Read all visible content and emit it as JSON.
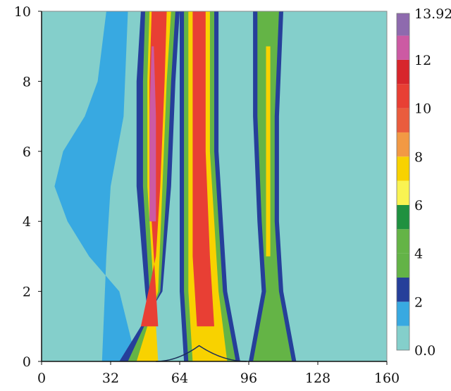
{
  "chart_data": {
    "type": "heatmap",
    "title": "",
    "xlabel": "",
    "ylabel": "",
    "xlim": [
      0,
      160
    ],
    "ylim": [
      0,
      10
    ],
    "x_ticks": [
      "0",
      "32",
      "64",
      "96",
      "128",
      "160"
    ],
    "y_ticks": [
      "0",
      "2",
      "4",
      "6",
      "8",
      "10"
    ],
    "colorbar": {
      "min": 0.0,
      "max": 13.92,
      "tick_labels": [
        "0.0",
        "2",
        "4",
        "6",
        "8",
        "10",
        "12",
        "13.92"
      ],
      "levels": [
        {
          "from": 0,
          "to": 1,
          "color": "#84cfcb"
        },
        {
          "from": 1,
          "to": 2,
          "color": "#38a9e1"
        },
        {
          "from": 2,
          "to": 3,
          "color": "#263f9a"
        },
        {
          "from": 3,
          "to": 4,
          "color": "#63b347"
        },
        {
          "from": 4,
          "to": 5,
          "color": "#64b446"
        },
        {
          "from": 5,
          "to": 6,
          "color": "#1f9140"
        },
        {
          "from": 6,
          "to": 7,
          "color": "#f9f352"
        },
        {
          "from": 7,
          "to": 8,
          "color": "#f8d200"
        },
        {
          "from": 8,
          "to": 9,
          "color": "#f29944"
        },
        {
          "from": 9,
          "to": 10,
          "color": "#ea5c3d"
        },
        {
          "from": 10,
          "to": 11,
          "color": "#e83f34"
        },
        {
          "from": 11,
          "to": 12,
          "color": "#d7262c"
        },
        {
          "from": 12,
          "to": 13,
          "color": "#cc5aa3"
        },
        {
          "from": 13,
          "to": 13.92,
          "color": "#8e6aae"
        }
      ]
    },
    "bottom_bump": {
      "x_start": 53,
      "x_peak": 73,
      "x_end": 95,
      "peak_y": 0.45
    },
    "bands": [
      {
        "name": "left-region",
        "color": "#38a9e1",
        "points": [
          [
            28,
            0
          ],
          [
            44,
            0
          ],
          [
            36,
            2
          ],
          [
            22,
            3
          ],
          [
            12,
            4
          ],
          [
            6,
            5
          ],
          [
            10,
            6
          ],
          [
            20,
            7
          ],
          [
            26,
            8
          ],
          [
            30,
            10
          ],
          [
            40,
            10
          ],
          [
            38,
            7
          ],
          [
            32,
            5
          ],
          [
            30,
            3
          ]
        ]
      },
      {
        "name": "band-1",
        "color": "#263f9a",
        "points": [
          [
            36,
            0
          ],
          [
            52,
            0
          ],
          [
            48,
            2
          ],
          [
            44,
            5
          ],
          [
            44,
            8
          ],
          [
            46,
            10
          ],
          [
            64,
            10
          ],
          [
            62,
            8
          ],
          [
            60,
            5
          ],
          [
            56,
            2
          ]
        ]
      },
      {
        "name": "band-1",
        "color": "#64b446",
        "points": [
          [
            40,
            0
          ],
          [
            53,
            0
          ],
          [
            50,
            2
          ],
          [
            47,
            5
          ],
          [
            47,
            8
          ],
          [
            48,
            10
          ],
          [
            62,
            10
          ],
          [
            60,
            8
          ],
          [
            58,
            5
          ],
          [
            55,
            2
          ]
        ]
      },
      {
        "name": "band-1",
        "color": "#f8d200",
        "points": [
          [
            44,
            0
          ],
          [
            54,
            0
          ],
          [
            52,
            2
          ],
          [
            49,
            5
          ],
          [
            49,
            8
          ],
          [
            50,
            10
          ],
          [
            60,
            10
          ],
          [
            58,
            8
          ],
          [
            56,
            5
          ],
          [
            54,
            2
          ]
        ]
      },
      {
        "name": "band-1",
        "color": "#e83f34",
        "points": [
          [
            46,
            1
          ],
          [
            54,
            1
          ],
          [
            52,
            3
          ],
          [
            50,
            5
          ],
          [
            50,
            8
          ],
          [
            51,
            10
          ],
          [
            58,
            10
          ],
          [
            57,
            8
          ],
          [
            55,
            5
          ],
          [
            53,
            3
          ]
        ]
      },
      {
        "name": "band-1",
        "color": "#cc5aa3",
        "points": [
          [
            50,
            4
          ],
          [
            53,
            4
          ],
          [
            53,
            7
          ],
          [
            52,
            9
          ],
          [
            51,
            9
          ],
          [
            50,
            7
          ]
        ]
      },
      {
        "name": "band-2",
        "color": "#263f9a",
        "points": [
          [
            66,
            0
          ],
          [
            92,
            0
          ],
          [
            86,
            2
          ],
          [
            82,
            6
          ],
          [
            82,
            10
          ],
          [
            64,
            10
          ],
          [
            64,
            6
          ],
          [
            64,
            2
          ]
        ]
      },
      {
        "name": "band-2",
        "color": "#64b446",
        "points": [
          [
            68,
            0
          ],
          [
            90,
            0
          ],
          [
            84,
            2
          ],
          [
            80,
            6
          ],
          [
            80,
            10
          ],
          [
            66,
            10
          ],
          [
            66,
            6
          ],
          [
            66,
            2
          ]
        ]
      },
      {
        "name": "band-2",
        "color": "#f8d200",
        "points": [
          [
            70,
            0
          ],
          [
            86,
            0
          ],
          [
            82,
            2
          ],
          [
            78,
            6
          ],
          [
            78,
            10
          ],
          [
            68,
            10
          ],
          [
            68,
            6
          ],
          [
            68,
            2
          ]
        ]
      },
      {
        "name": "band-2",
        "color": "#e83f34",
        "points": [
          [
            72,
            1
          ],
          [
            80,
            1
          ],
          [
            78,
            3
          ],
          [
            76,
            6
          ],
          [
            76,
            10
          ],
          [
            70,
            10
          ],
          [
            70,
            6
          ],
          [
            70,
            3
          ]
        ]
      },
      {
        "name": "band-3",
        "color": "#263f9a",
        "points": [
          [
            96,
            0
          ],
          [
            118,
            0
          ],
          [
            112,
            2
          ],
          [
            110,
            4
          ],
          [
            110,
            7
          ],
          [
            112,
            10
          ],
          [
            98,
            10
          ],
          [
            98,
            7
          ],
          [
            100,
            4
          ],
          [
            102,
            2
          ]
        ]
      },
      {
        "name": "band-3",
        "color": "#64b446",
        "points": [
          [
            98,
            0
          ],
          [
            116,
            0
          ],
          [
            110,
            2
          ],
          [
            108,
            4
          ],
          [
            108,
            7
          ],
          [
            110,
            10
          ],
          [
            100,
            10
          ],
          [
            100,
            7
          ],
          [
            102,
            4
          ],
          [
            104,
            2
          ]
        ]
      },
      {
        "name": "band-3",
        "color": "#f8d200",
        "points": [
          [
            104,
            3
          ],
          [
            106,
            3
          ],
          [
            106,
            6
          ],
          [
            106,
            9
          ],
          [
            104,
            9
          ],
          [
            104,
            6
          ]
        ]
      }
    ]
  }
}
